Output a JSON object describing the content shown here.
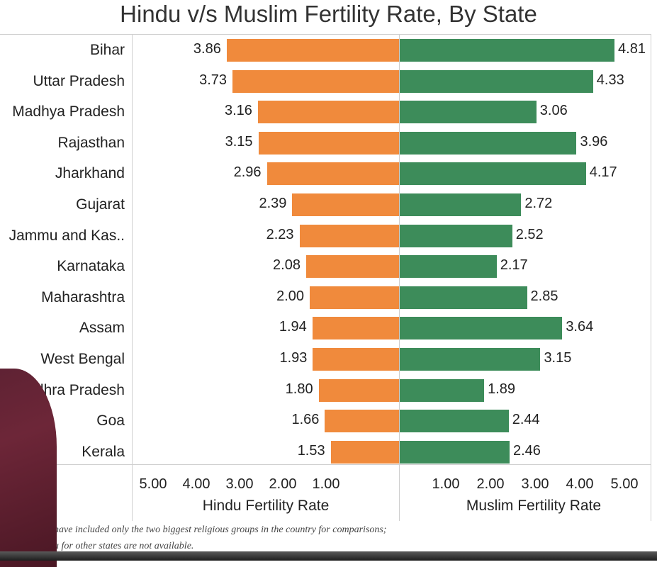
{
  "chart_data": {
    "type": "bar",
    "orientation": "horizontal-diverging",
    "title": "Hindu v/s Muslim Fertility Rate, By State",
    "categories": [
      "Bihar",
      "Uttar Pradesh",
      "Madhya Pradesh",
      "Rajasthan",
      "Jharkhand",
      "Gujarat",
      "Jammu and Kas..",
      "Karnataka",
      "Maharashtra",
      "Assam",
      "West Bengal",
      "Andhra Pradesh",
      "Goa",
      "Kerala"
    ],
    "series": [
      {
        "name": "Hindu Fertility Rate",
        "color": "#f08a3c",
        "values": [
          3.86,
          3.73,
          3.16,
          3.15,
          2.96,
          2.39,
          2.23,
          2.08,
          2.0,
          1.94,
          1.93,
          1.8,
          1.66,
          1.53
        ],
        "labels": [
          "3.86",
          "3.73",
          "3.16",
          "3.15",
          "2.96",
          "2.39",
          "2.23",
          "2.08",
          "2.00",
          "1.94",
          "1.93",
          "1.80",
          "1.66",
          "1.53"
        ]
      },
      {
        "name": "Muslim Fertility Rate",
        "color": "#3d8c5a",
        "values": [
          4.81,
          4.33,
          3.06,
          3.96,
          4.17,
          2.72,
          2.52,
          2.17,
          2.85,
          3.64,
          3.15,
          1.89,
          2.44,
          2.46
        ],
        "labels": [
          "4.81",
          "4.33",
          "3.06",
          "3.96",
          "4.17",
          "2.72",
          "2.52",
          "2.17",
          "2.85",
          "3.64",
          "3.15",
          "1.89",
          "2.44",
          "2.46"
        ]
      }
    ],
    "xticks_left": [
      "5.00",
      "4.00",
      "3.00",
      "2.00",
      "1.00"
    ],
    "xticks_right": [
      "1.00",
      "2.00",
      "3.00",
      "4.00",
      "5.00"
    ],
    "xlabel_left": "Hindu Fertility Rate",
    "xlabel_right": "Muslim Fertility Rate",
    "xlim": [
      0,
      5
    ],
    "grid": false
  },
  "footnote": {
    "line1": "have included only the two biggest religious groups in the country for comparisons;",
    "line2": "a for other states are not available."
  }
}
